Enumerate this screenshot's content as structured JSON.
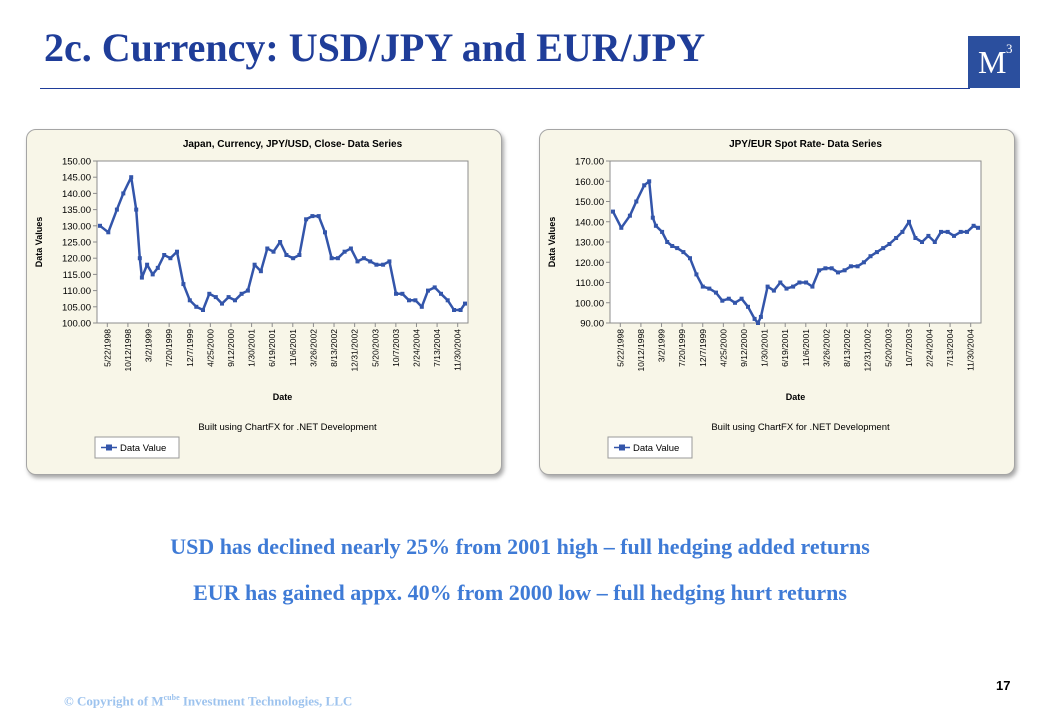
{
  "slide": {
    "title": "2c. Currency: USD/JPY and EUR/JPY",
    "logo_text": "M",
    "logo_sup": "3",
    "message_1": "USD has declined nearly 25% from 2001 high – full hedging added returns",
    "message_2": "EUR has gained appx. 40% from 2000 low – full hedging hurt returns",
    "copyright_prefix": "© Copyright of M",
    "copyright_sup": "cube",
    "copyright_suffix": " Investment Technologies, LLC",
    "page_number": "17"
  },
  "colors": {
    "title": "#1f3d99",
    "message": "#3f7bd6",
    "series": "#3355aa",
    "panel_bg": "#f8f6e8",
    "logo_bg": "#2b4f9e"
  },
  "chart_data": [
    {
      "type": "line",
      "title": "Japan, Currency, JPY/USD, Close- Data Series",
      "xlabel": "Date",
      "ylabel": "Data Values",
      "footer": "Built using ChartFX for .NET Development",
      "legend": "Data Value",
      "legend_position": "bottom-left",
      "grid": false,
      "ylim": [
        100,
        150
      ],
      "yticks": [
        "150.00",
        "145.00",
        "140.00",
        "135.00",
        "130.00",
        "125.00",
        "120.00",
        "115.00",
        "110.00",
        "105.00",
        "100.00"
      ],
      "xticks": [
        "5/22/1998",
        "10/12/1998",
        "3/2/1999",
        "7/20/1999",
        "12/7/1999",
        "4/25/2000",
        "9/12/2000",
        "1/30/2001",
        "6/19/2001",
        "11/6/2001",
        "3/26/2002",
        "8/13/2002",
        "12/31/2002",
        "5/20/2003",
        "10/7/2003",
        "2/24/2004",
        "7/13/2004",
        "11/30/2004"
      ],
      "series": [
        {
          "x": [
            "1998-01-01",
            "1998-03-01",
            "1998-05-01",
            "1998-06-15",
            "1998-08-10",
            "1998-09-15",
            "1998-10-10",
            "1998-10-25",
            "1998-12-01",
            "1999-01-10",
            "1999-02-15",
            "1999-04-01",
            "1999-05-15",
            "1999-07-01",
            "1999-08-15",
            "1999-09-30",
            "1999-11-15",
            "2000-01-01",
            "2000-02-15",
            "2000-04-01",
            "2000-05-15",
            "2000-07-01",
            "2000-08-15",
            "2000-10-01",
            "2000-11-15",
            "2001-01-01",
            "2001-02-15",
            "2001-04-01",
            "2001-05-15",
            "2001-07-01",
            "2001-08-15",
            "2001-10-01",
            "2001-11-15",
            "2002-01-01",
            "2002-02-15",
            "2002-04-01",
            "2002-05-15",
            "2002-07-01",
            "2002-08-15",
            "2002-10-01",
            "2002-11-15",
            "2003-01-01",
            "2003-02-15",
            "2003-04-01",
            "2003-05-15",
            "2003-07-01",
            "2003-08-15",
            "2003-10-01",
            "2003-11-15",
            "2004-01-01",
            "2004-02-15",
            "2004-04-01",
            "2004-05-15",
            "2004-07-01",
            "2004-08-15",
            "2004-10-01",
            "2004-11-15",
            "2005-01-01",
            "2005-02-01"
          ],
          "y": [
            130,
            128,
            135,
            140,
            145,
            135,
            120,
            114,
            118,
            115,
            117,
            121,
            120,
            122,
            112,
            107,
            105,
            104,
            109,
            108,
            106,
            108,
            107,
            109,
            110,
            118,
            116,
            123,
            122,
            125,
            121,
            120,
            121,
            132,
            133,
            133,
            128,
            120,
            120,
            122,
            123,
            119,
            120,
            119,
            118,
            118,
            119,
            109,
            109,
            107,
            107,
            105,
            110,
            111,
            109,
            107,
            104,
            104,
            106
          ]
        }
      ]
    },
    {
      "type": "line",
      "title": "JPY/EUR Spot Rate- Data Series",
      "xlabel": "Date",
      "ylabel": "Data Values",
      "footer": "Built using ChartFX for .NET Development",
      "legend": "Data Value",
      "legend_position": "bottom-left",
      "grid": false,
      "ylim": [
        90,
        170
      ],
      "yticks": [
        "170.00",
        "160.00",
        "150.00",
        "140.00",
        "130.00",
        "120.00",
        "110.00",
        "100.00",
        "90.00"
      ],
      "xticks": [
        "5/22/1998",
        "10/12/1998",
        "3/2/1999",
        "7/20/1999",
        "12/7/1999",
        "4/25/2000",
        "9/12/2000",
        "1/30/2001",
        "6/19/2001",
        "11/6/2001",
        "3/26/2002",
        "8/13/2002",
        "12/31/2002",
        "5/20/2003",
        "10/7/2003",
        "2/24/2004",
        "7/13/2004",
        "11/30/2004"
      ],
      "series": [
        {
          "x": [
            "1998-01-01",
            "1998-03-01",
            "1998-05-01",
            "1998-06-15",
            "1998-08-10",
            "1998-09-15",
            "1998-10-10",
            "1998-11-01",
            "1998-12-15",
            "1999-01-20",
            "1999-02-25",
            "1999-04-01",
            "1999-05-15",
            "1999-07-01",
            "1999-08-15",
            "1999-09-30",
            "1999-11-15",
            "2000-01-01",
            "2000-02-15",
            "2000-04-01",
            "2000-05-15",
            "2000-07-01",
            "2000-08-15",
            "2000-10-01",
            "2000-10-25",
            "2000-11-15",
            "2001-01-01",
            "2001-02-15",
            "2001-04-01",
            "2001-05-15",
            "2001-07-01",
            "2001-08-15",
            "2001-10-01",
            "2001-11-15",
            "2002-01-01",
            "2002-02-15",
            "2002-04-01",
            "2002-05-15",
            "2002-07-01",
            "2002-08-15",
            "2002-10-01",
            "2002-11-15",
            "2003-01-01",
            "2003-02-15",
            "2003-04-01",
            "2003-05-15",
            "2003-07-01",
            "2003-08-15",
            "2003-10-01",
            "2003-11-15",
            "2004-01-01",
            "2004-02-15",
            "2004-04-01",
            "2004-05-15",
            "2004-07-01",
            "2004-08-15",
            "2004-10-01",
            "2004-11-15",
            "2005-01-01",
            "2005-02-01"
          ],
          "y": [
            145,
            137,
            143,
            150,
            158,
            160,
            142,
            138,
            135,
            130,
            128,
            127,
            125,
            122,
            114,
            108,
            107,
            105,
            101,
            102,
            100,
            102,
            98,
            92,
            90,
            93,
            108,
            106,
            110,
            107,
            108,
            110,
            110,
            108,
            116,
            117,
            117,
            115,
            116,
            118,
            118,
            120,
            123,
            125,
            127,
            129,
            132,
            135,
            140,
            132,
            130,
            133,
            130,
            135,
            135,
            133,
            135,
            135,
            138,
            137
          ]
        }
      ]
    }
  ]
}
